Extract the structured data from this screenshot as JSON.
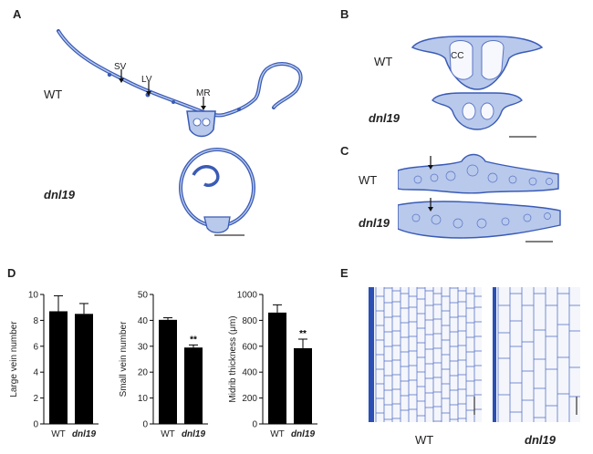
{
  "figure": {
    "panels": {
      "A": {
        "letter": "A",
        "wt_label": "WT",
        "mutant_label": "dnl19",
        "annotations": [
          "SV",
          "LV",
          "MR"
        ]
      },
      "B": {
        "letter": "B",
        "wt_label": "WT",
        "mutant_label": "dnl19",
        "annotation": "CC"
      },
      "C": {
        "letter": "C",
        "wt_label": "WT",
        "mutant_label": "dnl19"
      },
      "D": {
        "letter": "D"
      },
      "E": {
        "letter": "E",
        "wt_label": "WT",
        "mutant_label": "dnl19"
      }
    },
    "colors": {
      "tissue_fill": "#b8c9ec",
      "tissue_stroke": "#3a5bb5",
      "cell_wall": "#5a74c4",
      "bar": "#000000"
    }
  },
  "chart_data": [
    {
      "type": "bar",
      "categories": [
        "WT",
        "dnl19"
      ],
      "values": [
        8.7,
        8.5
      ],
      "errors": [
        1.2,
        0.8
      ],
      "significance": [
        "",
        ""
      ],
      "ylabel": "Large vein number",
      "ylim": [
        0,
        10
      ],
      "yticks": [
        0,
        2,
        4,
        6,
        8,
        10
      ]
    },
    {
      "type": "bar",
      "categories": [
        "WT",
        "dnl19"
      ],
      "values": [
        40.2,
        29.5
      ],
      "errors": [
        0.8,
        1.0
      ],
      "significance": [
        "",
        "**"
      ],
      "ylabel": "Small vein number",
      "ylim": [
        0,
        50
      ],
      "yticks": [
        0,
        10,
        20,
        30,
        40,
        50
      ]
    },
    {
      "type": "bar",
      "categories": [
        "WT",
        "dnl19"
      ],
      "values": [
        860,
        585
      ],
      "errors": [
        60,
        70
      ],
      "significance": [
        "",
        "**"
      ],
      "ylabel": "Midrib thickness (μm)",
      "ylim": [
        0,
        1000
      ],
      "yticks": [
        0,
        200,
        400,
        600,
        800,
        1000
      ]
    }
  ]
}
